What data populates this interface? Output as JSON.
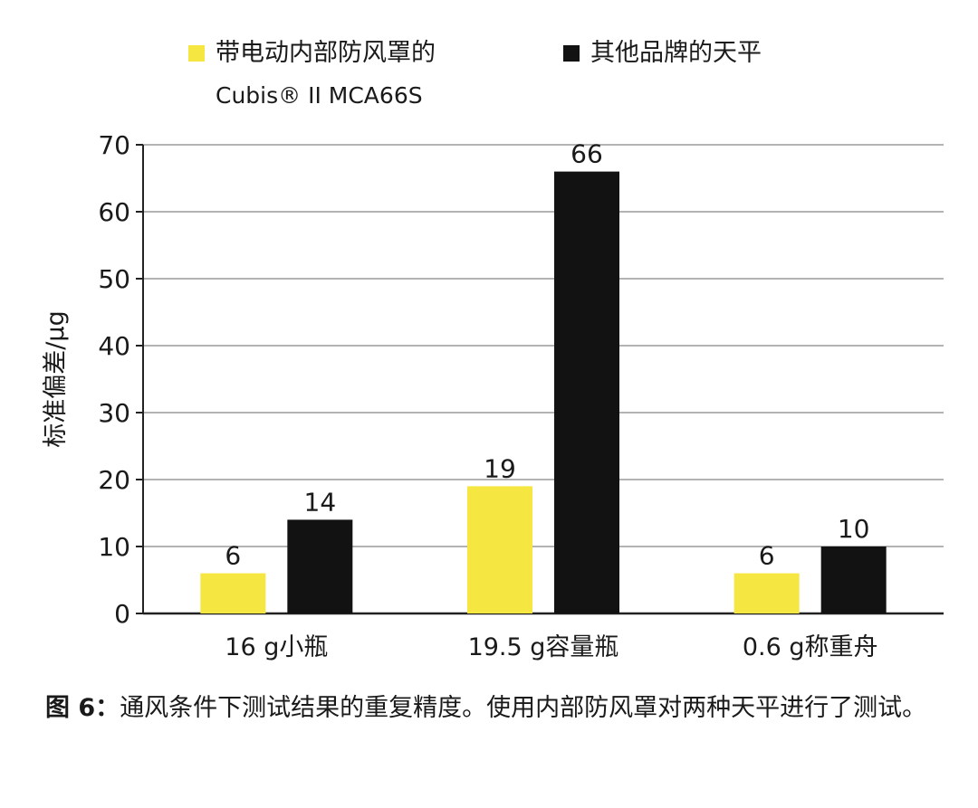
{
  "chart_data": {
    "type": "bar",
    "categories": [
      "16 g小瓶",
      "19.5 g容量瓶",
      "0.6 g称重舟"
    ],
    "series": [
      {
        "name": "带电动内部防风罩的\nCubis® II MCA66S",
        "values": [
          6,
          19,
          6
        ],
        "color": "#f5e642"
      },
      {
        "name": "其他品牌的天平",
        "values": [
          14,
          66,
          10
        ],
        "color": "#121212"
      }
    ],
    "ylabel": "标准偏差/μg",
    "ylim": [
      0,
      70
    ],
    "yticks": [
      0,
      10,
      20,
      30,
      40,
      50,
      60,
      70
    ],
    "grid": true,
    "legend_position": "top"
  },
  "legend": {
    "series1_line1": "带电动内部防风罩的",
    "series1_line2": "Cubis® II MCA66S",
    "series2": "其他品牌的天平"
  },
  "caption": {
    "label": "图 6：",
    "text": "通风条件下测试结果的重复精度。使用内部防风罩对两种天平进行了测试。"
  }
}
